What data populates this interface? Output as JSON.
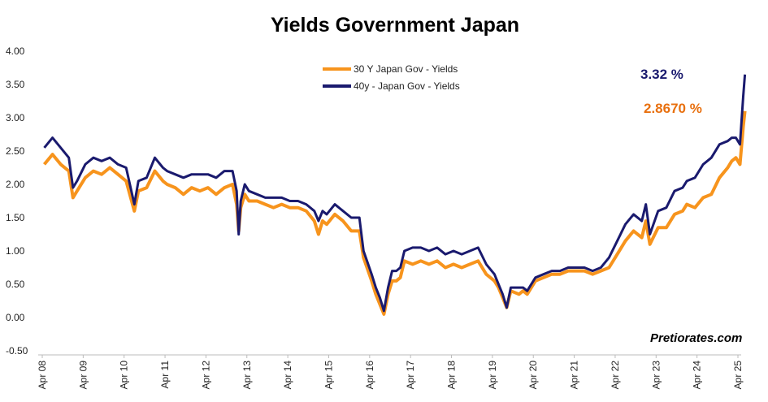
{
  "chart_data": {
    "type": "line",
    "title": "Yields Government Japan",
    "xlabel": "",
    "ylabel": "",
    "ylim": [
      -0.5,
      4.0
    ],
    "xlim": [
      2008.25,
      2025.5
    ],
    "yticks": [
      "-0.50",
      "0.00",
      "0.50",
      "1.00",
      "1.50",
      "2.00",
      "2.50",
      "3.00",
      "3.50",
      "4.00"
    ],
    "xticks": [
      "Apr 08",
      "Apr 09",
      "Apr 10",
      "Apr 11",
      "Apr 12",
      "Apr 13",
      "Apr 14",
      "Apr 15",
      "Apr 16",
      "Apr 17",
      "Apr 18",
      "Apr 19",
      "Apr 20",
      "Apr 21",
      "Apr 22",
      "Apr 23",
      "Apr 24",
      "Apr 25"
    ],
    "legend": {
      "placement": "top-center"
    },
    "series": [
      {
        "name": "30 Y Japan Gov - Yields",
        "color": "#f7941d",
        "x": [
          2008.3,
          2008.5,
          2008.7,
          2008.9,
          2009.0,
          2009.1,
          2009.3,
          2009.5,
          2009.7,
          2009.9,
          2010.1,
          2010.3,
          2010.5,
          2010.6,
          2010.8,
          2011.0,
          2011.2,
          2011.3,
          2011.5,
          2011.7,
          2011.9,
          2012.1,
          2012.3,
          2012.5,
          2012.7,
          2012.9,
          2013.0,
          2013.05,
          2013.1,
          2013.2,
          2013.3,
          2013.5,
          2013.7,
          2013.9,
          2014.1,
          2014.3,
          2014.5,
          2014.7,
          2014.9,
          2015.0,
          2015.1,
          2015.2,
          2015.4,
          2015.6,
          2015.8,
          2016.0,
          2016.1,
          2016.3,
          2016.4,
          2016.5,
          2016.6,
          2016.7,
          2016.8,
          2016.9,
          2017.0,
          2017.1,
          2017.3,
          2017.5,
          2017.7,
          2017.9,
          2018.1,
          2018.3,
          2018.5,
          2018.7,
          2018.9,
          2019.1,
          2019.3,
          2019.4,
          2019.5,
          2019.6,
          2019.7,
          2019.9,
          2020.0,
          2020.1,
          2020.3,
          2020.5,
          2020.7,
          2020.9,
          2021.1,
          2021.3,
          2021.5,
          2021.7,
          2021.9,
          2022.1,
          2022.3,
          2022.5,
          2022.7,
          2022.9,
          2023.0,
          2023.1,
          2023.3,
          2023.5,
          2023.7,
          2023.9,
          2024.0,
          2024.2,
          2024.4,
          2024.6,
          2024.8,
          2025.0,
          2025.1,
          2025.2,
          2025.3,
          2025.38,
          2025.42
        ],
        "values": [
          2.3,
          2.45,
          2.3,
          2.2,
          1.8,
          1.9,
          2.1,
          2.2,
          2.15,
          2.25,
          2.15,
          2.05,
          1.6,
          1.9,
          1.95,
          2.2,
          2.05,
          2.0,
          1.95,
          1.85,
          1.95,
          1.9,
          1.95,
          1.85,
          1.95,
          2.0,
          1.7,
          1.3,
          1.65,
          1.85,
          1.75,
          1.75,
          1.7,
          1.65,
          1.7,
          1.65,
          1.65,
          1.6,
          1.45,
          1.25,
          1.45,
          1.4,
          1.55,
          1.45,
          1.3,
          1.3,
          0.9,
          0.55,
          0.35,
          0.2,
          0.05,
          0.35,
          0.55,
          0.55,
          0.6,
          0.85,
          0.8,
          0.85,
          0.8,
          0.85,
          0.75,
          0.8,
          0.75,
          0.8,
          0.85,
          0.65,
          0.55,
          0.45,
          0.3,
          0.15,
          0.4,
          0.35,
          0.4,
          0.35,
          0.55,
          0.6,
          0.65,
          0.65,
          0.7,
          0.7,
          0.7,
          0.65,
          0.7,
          0.75,
          0.95,
          1.15,
          1.3,
          1.2,
          1.45,
          1.1,
          1.35,
          1.35,
          1.55,
          1.6,
          1.7,
          1.65,
          1.8,
          1.85,
          2.1,
          2.25,
          2.35,
          2.4,
          2.3,
          2.867,
          3.1
        ]
      },
      {
        "name": "40y - Japan Gov - Yields",
        "color": "#1a1a6e",
        "x": [
          2008.3,
          2008.5,
          2008.7,
          2008.9,
          2009.0,
          2009.1,
          2009.3,
          2009.5,
          2009.7,
          2009.9,
          2010.1,
          2010.3,
          2010.5,
          2010.6,
          2010.8,
          2011.0,
          2011.2,
          2011.3,
          2011.5,
          2011.7,
          2011.9,
          2012.1,
          2012.3,
          2012.5,
          2012.7,
          2012.9,
          2013.0,
          2013.05,
          2013.1,
          2013.2,
          2013.3,
          2013.5,
          2013.7,
          2013.9,
          2014.1,
          2014.3,
          2014.5,
          2014.7,
          2014.9,
          2015.0,
          2015.1,
          2015.2,
          2015.4,
          2015.6,
          2015.8,
          2016.0,
          2016.1,
          2016.3,
          2016.4,
          2016.5,
          2016.6,
          2016.7,
          2016.8,
          2016.9,
          2017.0,
          2017.1,
          2017.3,
          2017.5,
          2017.7,
          2017.9,
          2018.1,
          2018.3,
          2018.5,
          2018.7,
          2018.9,
          2019.1,
          2019.3,
          2019.4,
          2019.5,
          2019.6,
          2019.7,
          2019.9,
          2020.0,
          2020.1,
          2020.3,
          2020.5,
          2020.7,
          2020.9,
          2021.1,
          2021.3,
          2021.5,
          2021.7,
          2021.9,
          2022.1,
          2022.3,
          2022.5,
          2022.7,
          2022.9,
          2023.0,
          2023.1,
          2023.3,
          2023.5,
          2023.7,
          2023.9,
          2024.0,
          2024.2,
          2024.4,
          2024.6,
          2024.8,
          2025.0,
          2025.1,
          2025.2,
          2025.3,
          2025.38,
          2025.42
        ],
        "values": [
          2.55,
          2.7,
          2.55,
          2.4,
          1.95,
          2.05,
          2.3,
          2.4,
          2.35,
          2.4,
          2.3,
          2.25,
          1.7,
          2.05,
          2.1,
          2.4,
          2.25,
          2.2,
          2.15,
          2.1,
          2.15,
          2.15,
          2.15,
          2.1,
          2.2,
          2.2,
          1.9,
          1.25,
          1.75,
          2.0,
          1.9,
          1.85,
          1.8,
          1.8,
          1.8,
          1.75,
          1.75,
          1.7,
          1.6,
          1.45,
          1.6,
          1.55,
          1.7,
          1.6,
          1.5,
          1.5,
          1.0,
          0.65,
          0.45,
          0.3,
          0.1,
          0.45,
          0.7,
          0.7,
          0.75,
          1.0,
          1.05,
          1.05,
          1.0,
          1.05,
          0.95,
          1.0,
          0.95,
          1.0,
          1.05,
          0.8,
          0.65,
          0.5,
          0.35,
          0.15,
          0.45,
          0.45,
          0.45,
          0.4,
          0.6,
          0.65,
          0.7,
          0.7,
          0.75,
          0.75,
          0.75,
          0.7,
          0.75,
          0.9,
          1.15,
          1.4,
          1.55,
          1.45,
          1.7,
          1.25,
          1.6,
          1.65,
          1.9,
          1.95,
          2.05,
          2.1,
          2.3,
          2.4,
          2.6,
          2.65,
          2.7,
          2.7,
          2.6,
          3.32,
          3.65
        ]
      }
    ],
    "annotations": [
      {
        "text": "3.32 %",
        "color": "#1a1a6e"
      },
      {
        "text": "2.8670 %",
        "color": "#e8700f"
      }
    ]
  },
  "credit": "Pretiorates.com"
}
